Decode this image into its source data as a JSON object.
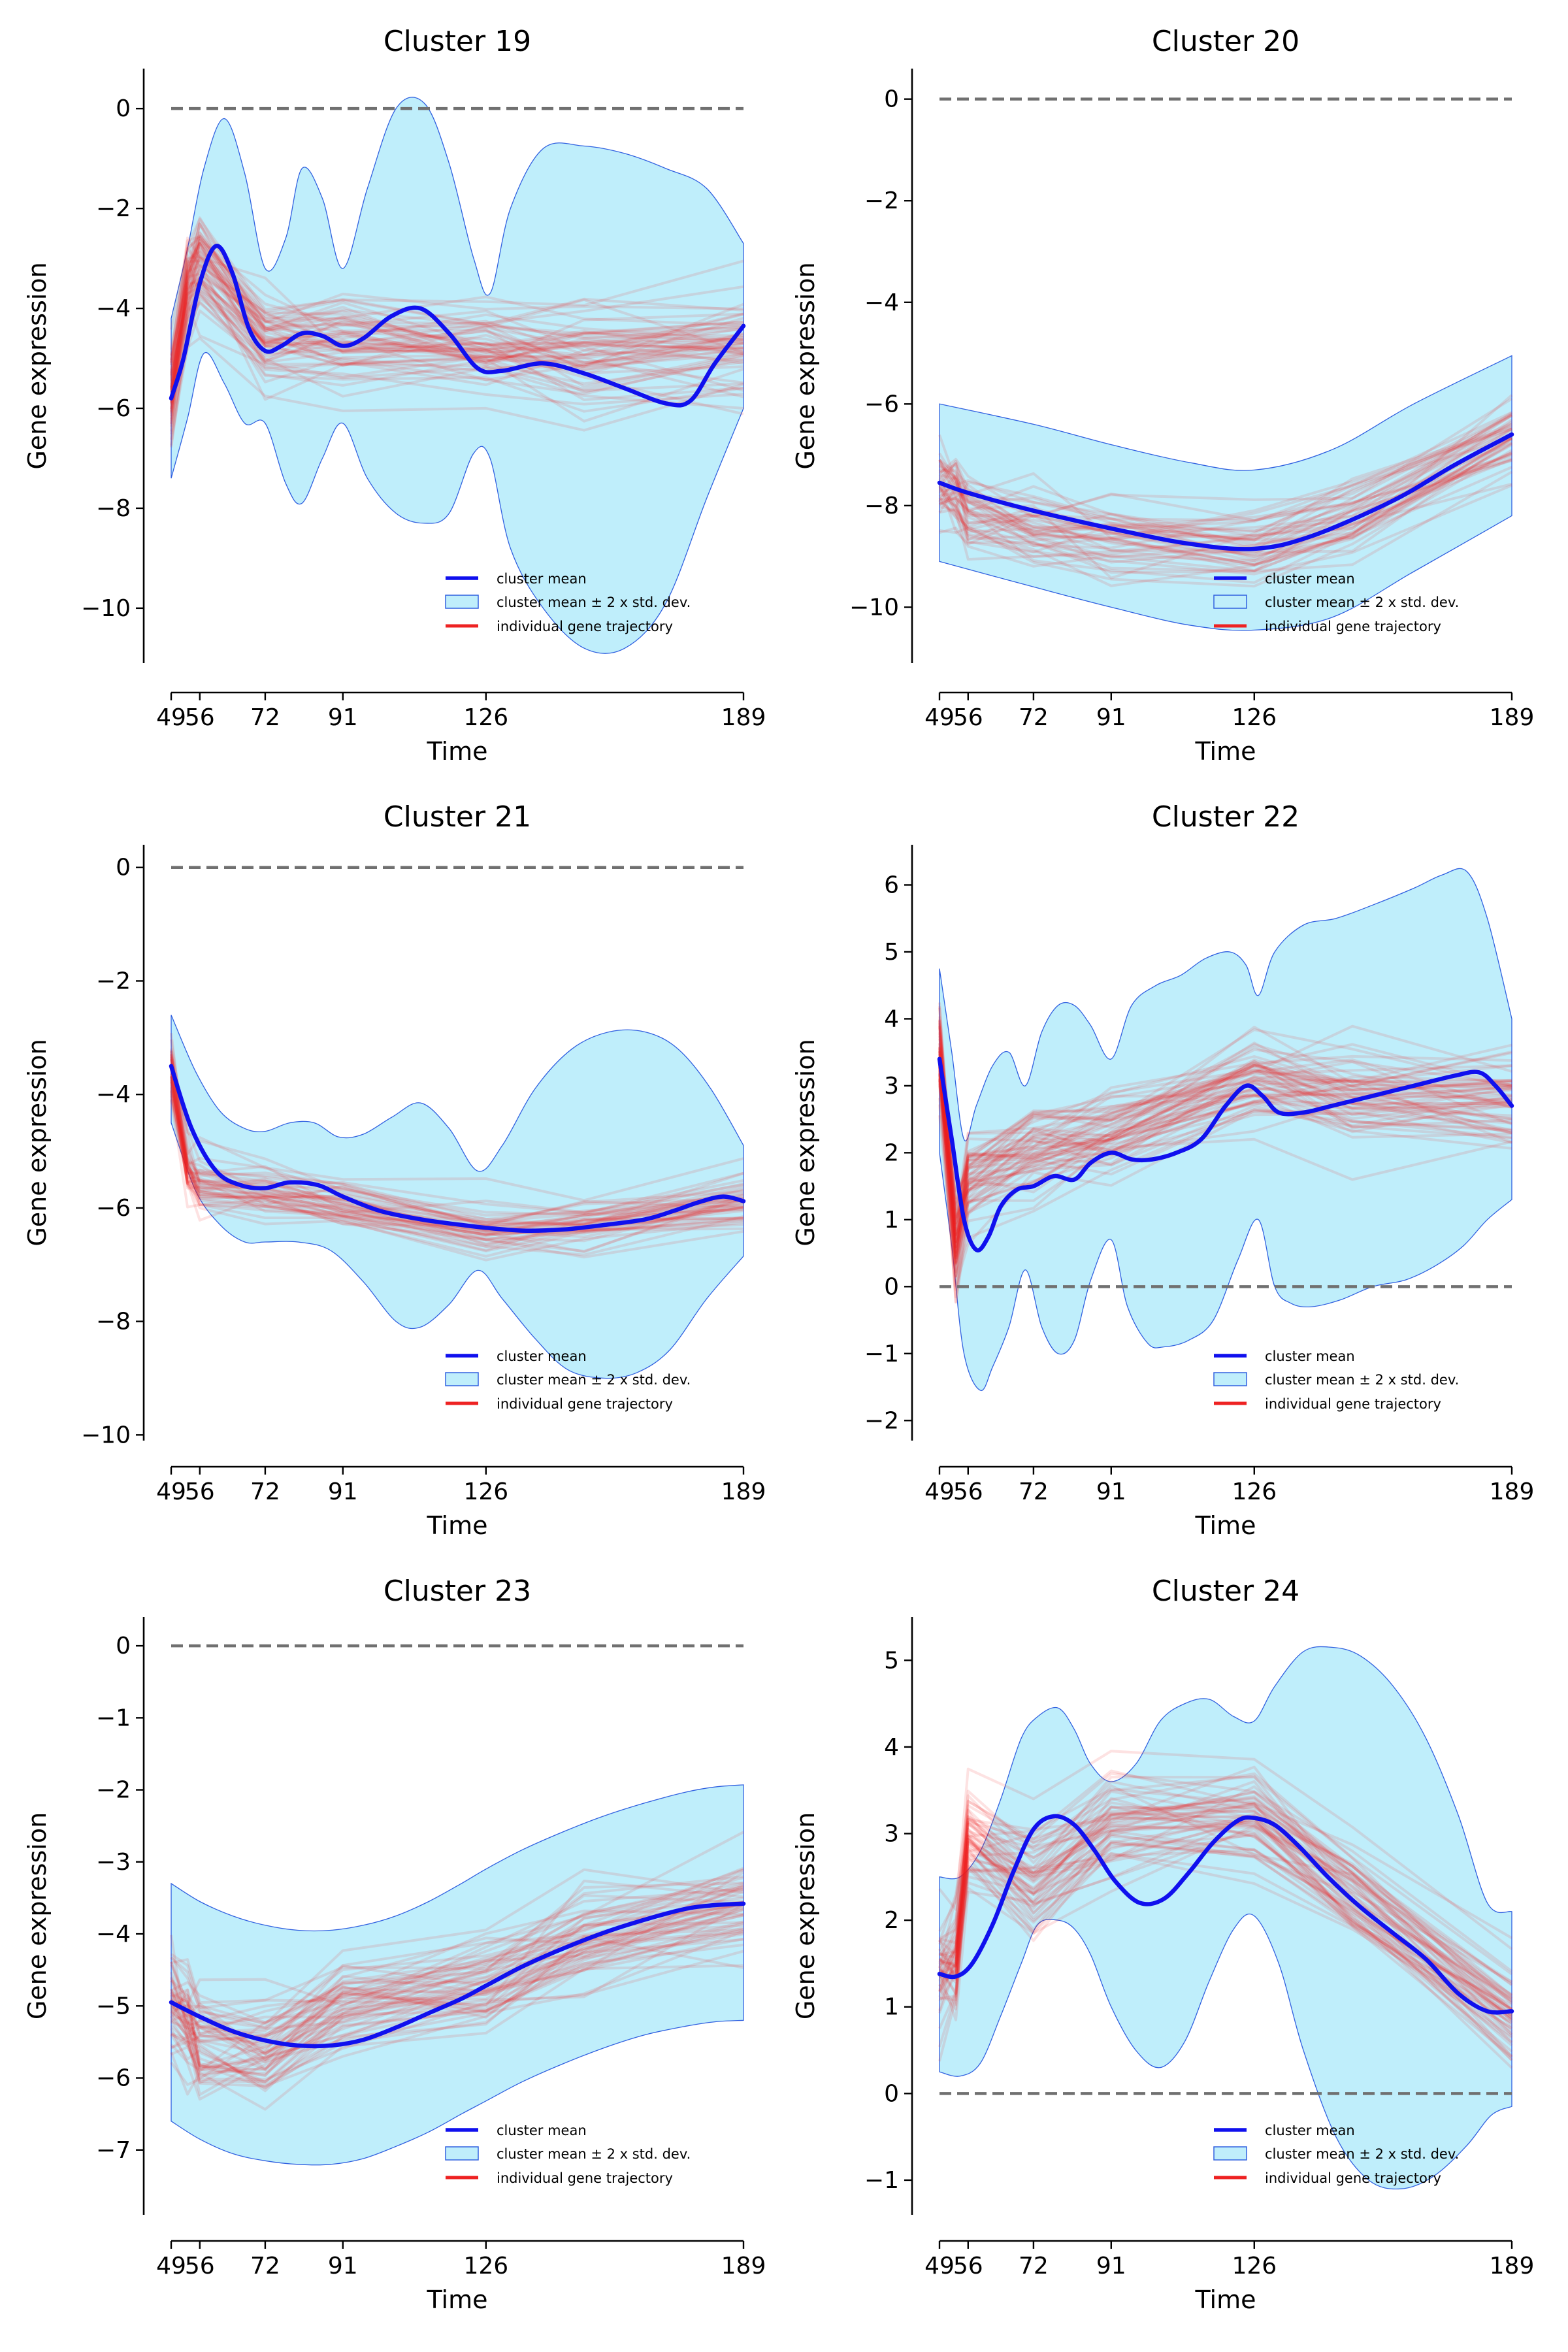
{
  "colors": {
    "mean": "#1010ee",
    "band_fill": "#bfeefb",
    "band_edge": "#3060e0",
    "trajectory": "#ee2222",
    "zero_line": "#707070"
  },
  "legend": {
    "mean_label": "cluster mean",
    "band_label": "cluster mean ± 2 x std. dev.",
    "traj_label": "individual gene trajectory"
  },
  "chart_data": [
    {
      "type": "line",
      "title": "Cluster 19",
      "xlabel": "Time",
      "ylabel": "Gene expression",
      "xticks": [
        49,
        56,
        72,
        91,
        126,
        189
      ],
      "yticks": [
        0,
        -2,
        -4,
        -6,
        -8,
        -10
      ],
      "xlim": [
        49,
        189
      ],
      "ylim": [
        -11.1,
        0.8
      ],
      "zero_line": 0,
      "legend_position": "lower-right",
      "series": [
        {
          "role": "mean",
          "x": [
            49,
            52,
            56,
            60,
            64,
            68,
            72,
            76,
            81,
            86,
            91,
            96,
            103,
            110,
            117,
            124,
            130,
            140,
            150,
            160,
            170,
            176,
            182,
            189
          ],
          "values": [
            -5.8,
            -5.0,
            -3.5,
            -2.75,
            -3.3,
            -4.4,
            -4.85,
            -4.75,
            -4.5,
            -4.55,
            -4.75,
            -4.6,
            -4.15,
            -4.0,
            -4.5,
            -5.2,
            -5.25,
            -5.1,
            -5.3,
            -5.6,
            -5.9,
            -5.85,
            -5.1,
            -4.35
          ]
        },
        {
          "role": "upper",
          "x": [
            49,
            53,
            57,
            62,
            67,
            72,
            77,
            81,
            86,
            91,
            97,
            104,
            111,
            117,
            123,
            127,
            132,
            140,
            150,
            160,
            170,
            180,
            189
          ],
          "values": [
            -4.2,
            -2.8,
            -1.2,
            -0.2,
            -1.3,
            -3.2,
            -2.6,
            -1.2,
            -1.8,
            -3.2,
            -1.6,
            0.0,
            0.1,
            -1.1,
            -3.0,
            -3.7,
            -2.0,
            -0.8,
            -0.75,
            -0.9,
            -1.2,
            -1.6,
            -2.7
          ]
        },
        {
          "role": "lower",
          "x": [
            49,
            53,
            57,
            62,
            67,
            72,
            77,
            81,
            86,
            91,
            97,
            104,
            111,
            117,
            123,
            127,
            132,
            140,
            150,
            160,
            170,
            180,
            189
          ],
          "values": [
            -7.4,
            -6.2,
            -4.9,
            -5.5,
            -6.3,
            -6.3,
            -7.5,
            -7.9,
            -7.0,
            -6.3,
            -7.4,
            -8.1,
            -8.3,
            -8.1,
            -6.9,
            -7.0,
            -8.8,
            -10.0,
            -10.8,
            -10.8,
            -9.9,
            -7.8,
            -6.0
          ]
        }
      ],
      "trajectories": {
        "count": 60,
        "profile": [
          -5.7,
          -3.6,
          -3.1,
          -4.6,
          -4.6,
          -4.8,
          -4.9,
          -4.8
        ],
        "spread": 1.1
      }
    },
    {
      "type": "line",
      "title": "Cluster 20",
      "xlabel": "Time",
      "ylabel": "Gene expression",
      "xticks": [
        49,
        56,
        72,
        91,
        126,
        189
      ],
      "yticks": [
        0,
        -2,
        -4,
        -6,
        -8,
        -10
      ],
      "xlim": [
        49,
        189
      ],
      "ylim": [
        -11.1,
        0.6
      ],
      "zero_line": 0,
      "legend_position": "lower-right",
      "series": [
        {
          "role": "mean",
          "x": [
            49,
            56,
            72,
            91,
            110,
            126,
            140,
            160,
            175,
            189
          ],
          "values": [
            -7.55,
            -7.75,
            -8.1,
            -8.45,
            -8.75,
            -8.85,
            -8.6,
            -7.9,
            -7.2,
            -6.6
          ]
        },
        {
          "role": "upper",
          "x": [
            49,
            72,
            91,
            110,
            126,
            145,
            165,
            189
          ],
          "values": [
            -6.0,
            -6.4,
            -6.8,
            -7.15,
            -7.3,
            -6.9,
            -6.0,
            -5.05
          ]
        },
        {
          "role": "lower",
          "x": [
            49,
            72,
            91,
            110,
            126,
            145,
            165,
            189
          ],
          "values": [
            -9.1,
            -9.6,
            -10.0,
            -10.35,
            -10.45,
            -10.2,
            -9.3,
            -8.2
          ]
        }
      ],
      "trajectories": {
        "count": 45,
        "profile": [
          -7.6,
          -7.7,
          -8.1,
          -8.4,
          -8.8,
          -8.9,
          -8.2,
          -6.6
        ],
        "spread": 0.9
      }
    },
    {
      "type": "line",
      "title": "Cluster 21",
      "xlabel": "Time",
      "ylabel": "Gene expression",
      "xticks": [
        49,
        56,
        72,
        91,
        126,
        189
      ],
      "yticks": [
        0,
        -2,
        -4,
        -6,
        -8,
        -10
      ],
      "xlim": [
        49,
        189
      ],
      "ylim": [
        -10.1,
        0.4
      ],
      "zero_line": 0,
      "legend_position": "lower-right",
      "series": [
        {
          "role": "mean",
          "x": [
            49,
            54,
            60,
            66,
            72,
            78,
            85,
            91,
            100,
            110,
            120,
            126,
            135,
            145,
            155,
            165,
            172,
            178,
            184,
            189
          ],
          "values": [
            -3.5,
            -4.6,
            -5.35,
            -5.6,
            -5.65,
            -5.55,
            -5.6,
            -5.8,
            -6.05,
            -6.2,
            -6.3,
            -6.35,
            -6.4,
            -6.38,
            -6.3,
            -6.2,
            -6.05,
            -5.9,
            -5.8,
            -5.88
          ]
        },
        {
          "role": "upper",
          "x": [
            49,
            55,
            61,
            67,
            72,
            78,
            84,
            90,
            96,
            103,
            110,
            117,
            124,
            130,
            138,
            147,
            156,
            165,
            173,
            181,
            189
          ],
          "values": [
            -2.6,
            -3.6,
            -4.3,
            -4.6,
            -4.65,
            -4.5,
            -4.5,
            -4.75,
            -4.7,
            -4.4,
            -4.15,
            -4.6,
            -5.35,
            -4.9,
            -3.9,
            -3.2,
            -2.9,
            -2.9,
            -3.2,
            -3.9,
            -4.9
          ]
        },
        {
          "role": "lower",
          "x": [
            49,
            55,
            61,
            67,
            72,
            80,
            88,
            96,
            104,
            110,
            117,
            124,
            130,
            138,
            146,
            155,
            163,
            171,
            180,
            189
          ],
          "values": [
            -4.5,
            -5.7,
            -6.3,
            -6.6,
            -6.6,
            -6.6,
            -6.75,
            -7.3,
            -8.0,
            -8.1,
            -7.7,
            -7.1,
            -7.6,
            -8.3,
            -8.85,
            -9.0,
            -8.9,
            -8.5,
            -7.6,
            -6.85
          ]
        }
      ],
      "trajectories": {
        "count": 45,
        "profile": [
          -3.6,
          -5.3,
          -5.6,
          -5.7,
          -6.0,
          -6.35,
          -6.3,
          -5.9
        ],
        "spread": 0.55
      }
    },
    {
      "type": "line",
      "title": "Cluster 22",
      "xlabel": "Time",
      "ylabel": "Gene expression",
      "xticks": [
        49,
        56,
        72,
        91,
        126,
        189
      ],
      "yticks": [
        6,
        5,
        4,
        3,
        2,
        1,
        0,
        -1,
        -2
      ],
      "xlim": [
        49,
        189
      ],
      "ylim": [
        -2.3,
        6.6
      ],
      "zero_line": 0,
      "legend_position": "lower-right",
      "series": [
        {
          "role": "mean",
          "x": [
            49,
            52,
            55,
            58,
            61,
            64,
            68,
            72,
            77,
            82,
            86,
            91,
            96,
            101,
            107,
            113,
            119,
            124,
            128,
            132,
            138,
            145,
            155,
            165,
            175,
            181,
            185,
            189
          ],
          "values": [
            3.4,
            2.2,
            1.0,
            0.55,
            0.75,
            1.2,
            1.45,
            1.5,
            1.65,
            1.6,
            1.85,
            2.0,
            1.9,
            1.9,
            2.0,
            2.2,
            2.7,
            3.0,
            2.85,
            2.6,
            2.6,
            2.7,
            2.85,
            3.0,
            3.15,
            3.2,
            3.0,
            2.7
          ]
        },
        {
          "role": "upper",
          "x": [
            49,
            52,
            55,
            58,
            62,
            66,
            70,
            74,
            78,
            82,
            86,
            91,
            96,
            102,
            108,
            114,
            120,
            124,
            127,
            131,
            138,
            146,
            155,
            165,
            172,
            178,
            183,
            189
          ],
          "values": [
            4.75,
            3.5,
            2.2,
            2.7,
            3.3,
            3.5,
            3.0,
            3.8,
            4.2,
            4.2,
            3.9,
            3.4,
            4.2,
            4.5,
            4.65,
            4.9,
            5.0,
            4.8,
            4.35,
            5.0,
            5.4,
            5.5,
            5.7,
            5.95,
            6.15,
            6.2,
            5.5,
            4.0
          ]
        },
        {
          "role": "lower",
          "x": [
            49,
            52,
            55,
            59,
            62,
            66,
            70,
            74,
            78,
            82,
            86,
            91,
            95,
            100,
            104,
            110,
            116,
            122,
            127,
            131,
            135,
            140,
            147,
            155,
            163,
            170,
            177,
            183,
            189
          ],
          "values": [
            2.0,
            0.6,
            -1.0,
            -1.55,
            -1.2,
            -0.6,
            0.25,
            -0.6,
            -1.0,
            -0.8,
            0.1,
            0.7,
            -0.3,
            -0.85,
            -0.9,
            -0.8,
            -0.5,
            0.4,
            1.0,
            0.0,
            -0.25,
            -0.3,
            -0.2,
            0.0,
            0.1,
            0.3,
            0.6,
            1.0,
            1.3
          ]
        }
      ],
      "trajectories": {
        "count": 60,
        "profile": [
          3.4,
          0.6,
          1.5,
          2.0,
          2.2,
          3.0,
          2.8,
          2.7
        ],
        "spread": 0.8
      }
    },
    {
      "type": "line",
      "title": "Cluster 23",
      "xlabel": "Time",
      "ylabel": "Gene expression",
      "xticks": [
        49,
        56,
        72,
        91,
        126,
        189
      ],
      "yticks": [
        0,
        -1,
        -2,
        -3,
        -4,
        -5,
        -6,
        -7
      ],
      "xlim": [
        49,
        189
      ],
      "ylim": [
        -7.9,
        0.4
      ],
      "zero_line": 0,
      "legend_position": "lower-right",
      "series": [
        {
          "role": "mean",
          "x": [
            49,
            56,
            64,
            72,
            80,
            88,
            96,
            104,
            112,
            120,
            126,
            135,
            145,
            155,
            165,
            175,
            182,
            189
          ],
          "values": [
            -4.95,
            -5.15,
            -5.35,
            -5.48,
            -5.55,
            -5.55,
            -5.47,
            -5.3,
            -5.1,
            -4.9,
            -4.72,
            -4.45,
            -4.2,
            -3.98,
            -3.8,
            -3.65,
            -3.6,
            -3.58
          ]
        },
        {
          "role": "upper",
          "x": [
            49,
            56,
            64,
            72,
            80,
            88,
            96,
            104,
            112,
            120,
            126,
            135,
            145,
            155,
            165,
            175,
            182,
            189
          ],
          "values": [
            -3.3,
            -3.55,
            -3.75,
            -3.88,
            -3.95,
            -3.95,
            -3.88,
            -3.75,
            -3.55,
            -3.3,
            -3.1,
            -2.83,
            -2.58,
            -2.36,
            -2.18,
            -2.03,
            -1.96,
            -1.93
          ]
        },
        {
          "role": "lower",
          "x": [
            49,
            56,
            64,
            72,
            80,
            88,
            96,
            104,
            112,
            120,
            126,
            135,
            145,
            155,
            165,
            175,
            182,
            189
          ],
          "values": [
            -6.6,
            -6.85,
            -7.05,
            -7.15,
            -7.2,
            -7.2,
            -7.12,
            -6.95,
            -6.75,
            -6.5,
            -6.32,
            -6.05,
            -5.8,
            -5.58,
            -5.4,
            -5.28,
            -5.22,
            -5.2
          ]
        }
      ],
      "trajectories": {
        "count": 55,
        "profile": [
          -4.9,
          -5.2,
          -5.5,
          -5.6,
          -5.0,
          -4.7,
          -4.0,
          -3.6
        ],
        "spread": 0.8
      }
    },
    {
      "type": "line",
      "title": "Cluster 24",
      "xlabel": "Time",
      "ylabel": "Gene expression",
      "xticks": [
        49,
        56,
        72,
        91,
        126,
        189
      ],
      "yticks": [
        5,
        4,
        3,
        2,
        1,
        0,
        -1
      ],
      "xlim": [
        49,
        189
      ],
      "ylim": [
        -1.4,
        5.5
      ],
      "zero_line": 0,
      "legend_position": "lower-right",
      "series": [
        {
          "role": "mean",
          "x": [
            49,
            53,
            57,
            62,
            67,
            72,
            77,
            82,
            87,
            92,
            98,
            104,
            110,
            116,
            122,
            126,
            131,
            137,
            144,
            152,
            160,
            168,
            176,
            183,
            189
          ],
          "values": [
            1.38,
            1.35,
            1.5,
            1.95,
            2.55,
            3.05,
            3.2,
            3.1,
            2.8,
            2.45,
            2.2,
            2.25,
            2.55,
            2.9,
            3.15,
            3.18,
            3.1,
            2.85,
            2.5,
            2.15,
            1.85,
            1.55,
            1.15,
            0.95,
            0.95
          ]
        },
        {
          "role": "upper",
          "x": [
            49,
            54,
            59,
            64,
            69,
            73,
            78,
            82,
            86,
            91,
            97,
            103,
            109,
            115,
            121,
            126,
            131,
            138,
            145,
            152,
            160,
            168,
            176,
            183,
            189
          ],
          "values": [
            2.5,
            2.5,
            2.8,
            3.4,
            4.1,
            4.35,
            4.45,
            4.2,
            3.8,
            3.6,
            3.8,
            4.3,
            4.5,
            4.55,
            4.35,
            4.3,
            4.7,
            5.1,
            5.15,
            5.05,
            4.7,
            4.1,
            3.2,
            2.2,
            2.1
          ]
        },
        {
          "role": "lower",
          "x": [
            49,
            54,
            59,
            64,
            69,
            73,
            78,
            82,
            86,
            91,
            97,
            103,
            109,
            115,
            121,
            126,
            132,
            138,
            146,
            154,
            162,
            170,
            178,
            184,
            189
          ],
          "values": [
            0.25,
            0.2,
            0.35,
            0.9,
            1.5,
            1.95,
            2.0,
            1.9,
            1.6,
            1.0,
            0.5,
            0.3,
            0.6,
            1.3,
            1.9,
            2.05,
            1.5,
            0.5,
            -0.5,
            -1.0,
            -1.1,
            -0.95,
            -0.6,
            -0.25,
            -0.15
          ]
        }
      ],
      "trajectories": {
        "count": 55,
        "profile": [
          1.4,
          1.6,
          3.0,
          2.5,
          3.1,
          3.2,
          2.3,
          0.95
        ],
        "spread": 0.7
      }
    }
  ]
}
